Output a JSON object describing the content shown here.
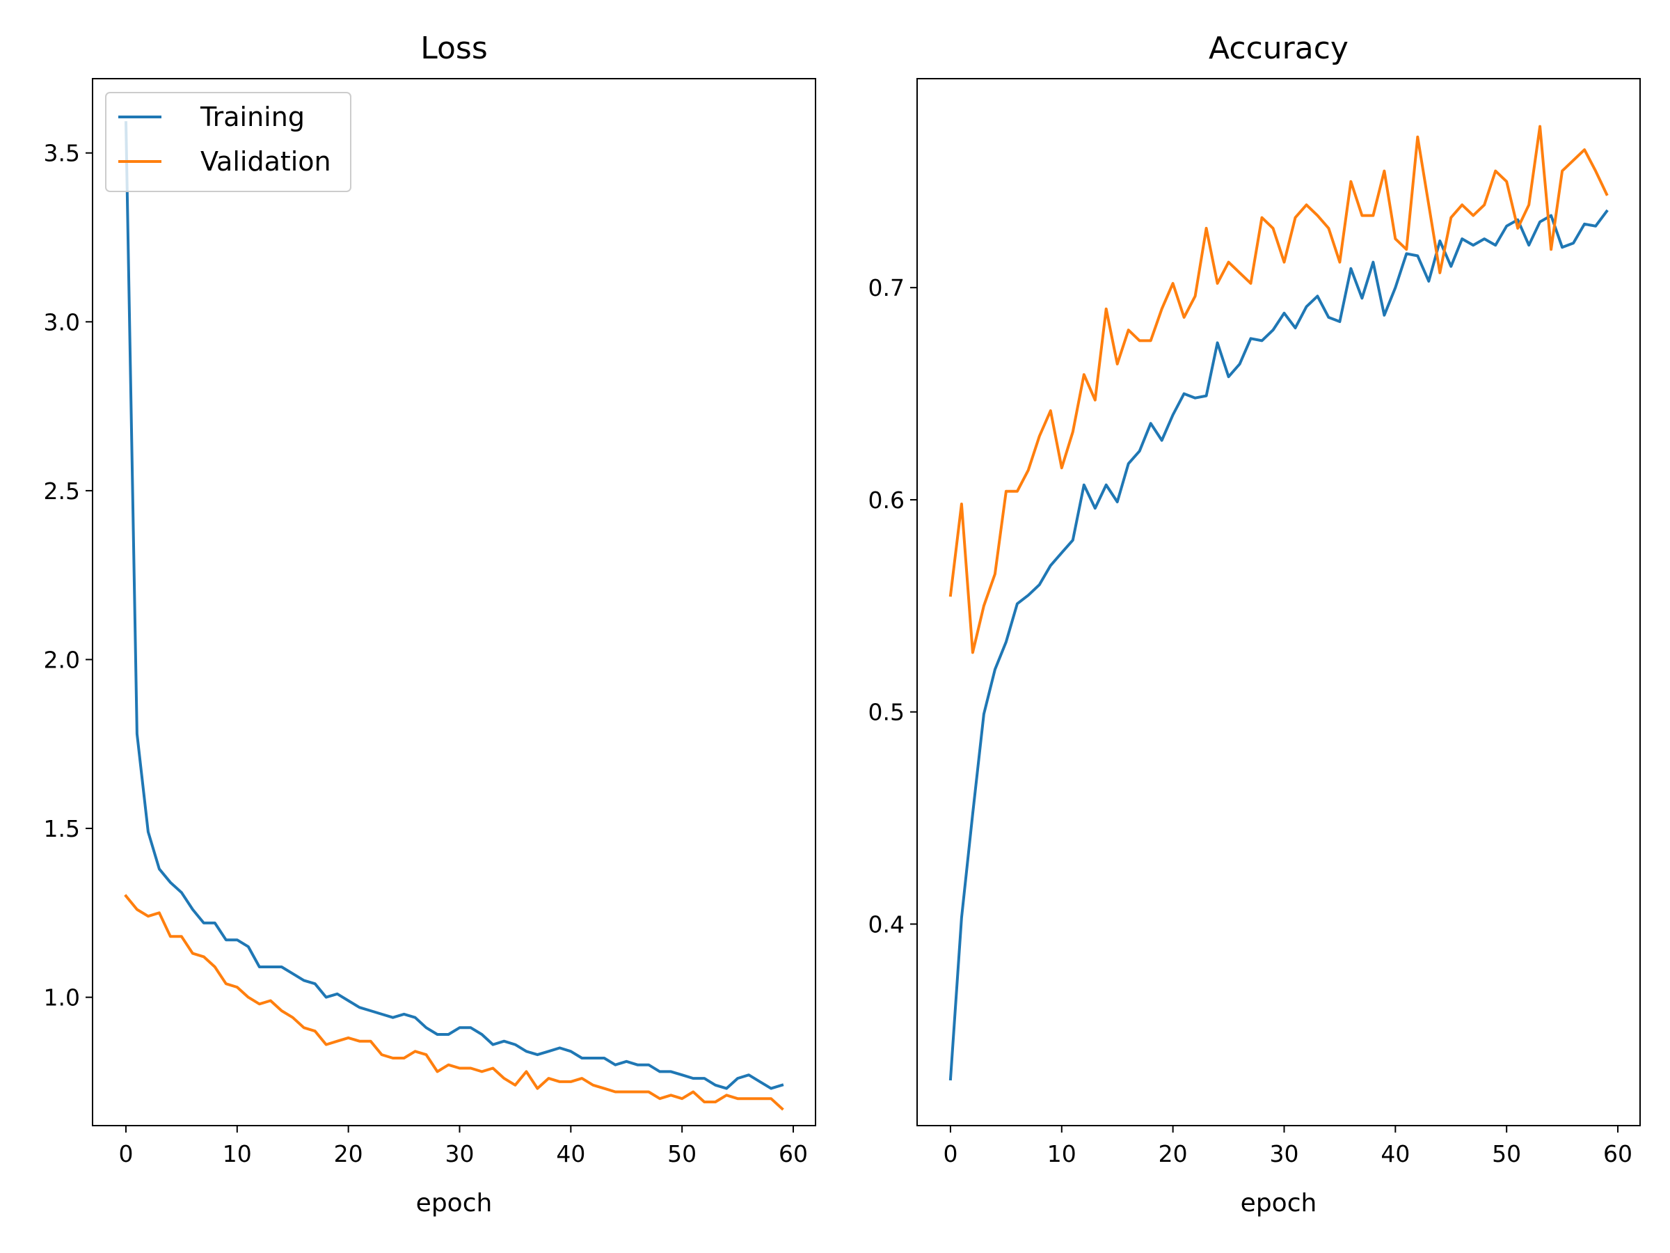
{
  "chart_data": [
    {
      "type": "line",
      "title": "Loss",
      "xlabel": "epoch",
      "ylabel": "",
      "xlim": [
        -3,
        62
      ],
      "ylim": [
        0.62,
        3.72
      ],
      "xticks": [
        0,
        10,
        20,
        30,
        40,
        50,
        60
      ],
      "yticks": [
        1.0,
        1.5,
        2.0,
        2.5,
        3.0,
        3.5
      ],
      "ytick_labels": [
        "1.0",
        "1.5",
        "2.0",
        "2.5",
        "3.0",
        "3.5"
      ],
      "legend": {
        "placement": "upper-left"
      },
      "x": [
        0,
        1,
        2,
        3,
        4,
        5,
        6,
        7,
        8,
        9,
        10,
        11,
        12,
        13,
        14,
        15,
        16,
        17,
        18,
        19,
        20,
        21,
        22,
        23,
        24,
        25,
        26,
        27,
        28,
        29,
        30,
        31,
        32,
        33,
        34,
        35,
        36,
        37,
        38,
        39,
        40,
        41,
        42,
        43,
        44,
        45,
        46,
        47,
        48,
        49,
        50,
        51,
        52,
        53,
        54,
        55,
        56,
        57,
        58,
        59
      ],
      "series": [
        {
          "name": "Training",
          "color": "#1f77b4",
          "values": [
            3.59,
            1.78,
            1.49,
            1.38,
            1.34,
            1.31,
            1.26,
            1.22,
            1.22,
            1.17,
            1.17,
            1.15,
            1.09,
            1.09,
            1.09,
            1.07,
            1.05,
            1.04,
            1.0,
            1.01,
            0.99,
            0.97,
            0.96,
            0.95,
            0.94,
            0.95,
            0.94,
            0.91,
            0.89,
            0.89,
            0.91,
            0.91,
            0.89,
            0.86,
            0.87,
            0.86,
            0.84,
            0.83,
            0.84,
            0.85,
            0.84,
            0.82,
            0.82,
            0.82,
            0.8,
            0.81,
            0.8,
            0.8,
            0.78,
            0.78,
            0.77,
            0.76,
            0.76,
            0.74,
            0.73,
            0.76,
            0.77,
            0.75,
            0.73,
            0.74
          ]
        },
        {
          "name": "Validation",
          "color": "#ff7f0e",
          "values": [
            1.3,
            1.26,
            1.24,
            1.25,
            1.18,
            1.18,
            1.13,
            1.12,
            1.09,
            1.04,
            1.03,
            1.0,
            0.98,
            0.99,
            0.96,
            0.94,
            0.91,
            0.9,
            0.86,
            0.87,
            0.88,
            0.87,
            0.87,
            0.83,
            0.82,
            0.82,
            0.84,
            0.83,
            0.78,
            0.8,
            0.79,
            0.79,
            0.78,
            0.79,
            0.76,
            0.74,
            0.78,
            0.73,
            0.76,
            0.75,
            0.75,
            0.76,
            0.74,
            0.73,
            0.72,
            0.72,
            0.72,
            0.72,
            0.7,
            0.71,
            0.7,
            0.72,
            0.69,
            0.69,
            0.71,
            0.7,
            0.7,
            0.7,
            0.7,
            0.67
          ]
        }
      ]
    },
    {
      "type": "line",
      "title": "Accuracy",
      "xlabel": "epoch",
      "ylabel": "",
      "xlim": [
        -3,
        62
      ],
      "ylim": [
        0.305,
        0.7985
      ],
      "xticks": [
        0,
        10,
        20,
        30,
        40,
        50,
        60
      ],
      "yticks": [
        0.4,
        0.5,
        0.6,
        0.7
      ],
      "ytick_labels": [
        "0.4",
        "0.5",
        "0.6",
        "0.7"
      ],
      "x": [
        0,
        1,
        2,
        3,
        4,
        5,
        6,
        7,
        8,
        9,
        10,
        11,
        12,
        13,
        14,
        15,
        16,
        17,
        18,
        19,
        20,
        21,
        22,
        23,
        24,
        25,
        26,
        27,
        28,
        29,
        30,
        31,
        32,
        33,
        34,
        35,
        36,
        37,
        38,
        39,
        40,
        41,
        42,
        43,
        44,
        45,
        46,
        47,
        48,
        49,
        50,
        51,
        52,
        53,
        54,
        55,
        56,
        57,
        58,
        59
      ],
      "series": [
        {
          "name": "Training",
          "color": "#1f77b4",
          "values": [
            0.327,
            0.403,
            0.452,
            0.499,
            0.52,
            0.533,
            0.551,
            0.555,
            0.56,
            0.569,
            0.575,
            0.581,
            0.607,
            0.596,
            0.607,
            0.599,
            0.617,
            0.623,
            0.636,
            0.628,
            0.64,
            0.65,
            0.648,
            0.649,
            0.674,
            0.658,
            0.664,
            0.676,
            0.675,
            0.68,
            0.688,
            0.681,
            0.691,
            0.696,
            0.686,
            0.684,
            0.709,
            0.695,
            0.712,
            0.687,
            0.7,
            0.716,
            0.715,
            0.703,
            0.722,
            0.71,
            0.723,
            0.72,
            0.723,
            0.72,
            0.729,
            0.732,
            0.72,
            0.731,
            0.734,
            0.719,
            0.721,
            0.73,
            0.729,
            0.736
          ]
        },
        {
          "name": "Validation",
          "color": "#ff7f0e",
          "values": [
            0.555,
            0.598,
            0.528,
            0.55,
            0.565,
            0.604,
            0.604,
            0.614,
            0.63,
            0.642,
            0.615,
            0.632,
            0.659,
            0.647,
            0.69,
            0.664,
            0.68,
            0.675,
            0.675,
            0.69,
            0.702,
            0.686,
            0.696,
            0.728,
            0.702,
            0.712,
            0.707,
            0.702,
            0.733,
            0.728,
            0.712,
            0.733,
            0.739,
            0.734,
            0.728,
            0.712,
            0.75,
            0.734,
            0.734,
            0.755,
            0.723,
            0.718,
            0.771,
            0.739,
            0.707,
            0.733,
            0.739,
            0.734,
            0.739,
            0.755,
            0.75,
            0.728,
            0.739,
            0.776,
            0.718,
            0.755,
            0.76,
            0.765,
            0.755,
            0.744
          ]
        }
      ]
    }
  ]
}
